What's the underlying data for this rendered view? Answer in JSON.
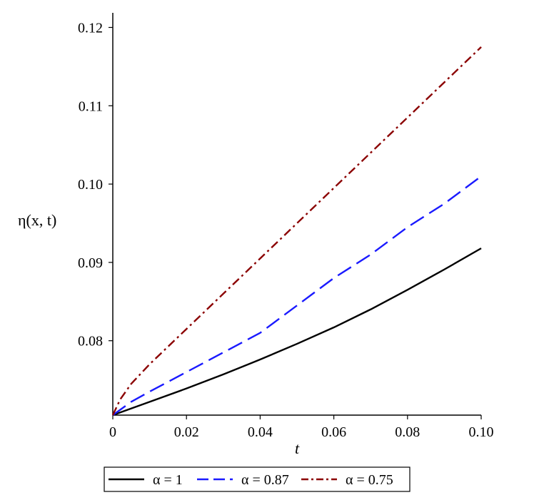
{
  "chart_data": {
    "type": "line",
    "title": "",
    "xlabel": "t",
    "ylabel": "η(x, t)",
    "xlim": [
      0,
      0.1
    ],
    "ylim": [
      0.0705,
      0.1215
    ],
    "x_ticks": [
      0,
      0.02,
      0.04,
      0.06,
      0.08,
      0.1
    ],
    "x_tick_labels": [
      "0",
      "0.02",
      "0.04",
      "0.06",
      "0.08",
      "0.10"
    ],
    "y_ticks": [
      0.08,
      0.09,
      0.1,
      0.11,
      0.12
    ],
    "y_tick_labels": [
      "0.08",
      "0.09",
      "0.10",
      "0.11",
      "0.12"
    ],
    "grid": false,
    "legend_position": "bottom",
    "series": [
      {
        "name": "α = 1",
        "color": "#000000",
        "dash": "solid",
        "x": [
          0,
          0.01,
          0.02,
          0.03,
          0.04,
          0.05,
          0.06,
          0.07,
          0.08,
          0.09,
          0.1
        ],
        "y": [
          0.0705,
          0.0722,
          0.0739,
          0.0757,
          0.0776,
          0.0796,
          0.0817,
          0.084,
          0.0865,
          0.0891,
          0.0918
        ]
      },
      {
        "name": "α = 0.87",
        "color": "#1a1aff",
        "dash": "long-dash",
        "x": [
          0,
          0.005,
          0.01,
          0.02,
          0.03,
          0.04,
          0.05,
          0.06,
          0.07,
          0.08,
          0.09,
          0.1
        ],
        "y": [
          0.0705,
          0.0722,
          0.0735,
          0.076,
          0.0785,
          0.081,
          0.0845,
          0.088,
          0.091,
          0.0945,
          0.0975,
          0.101
        ]
      },
      {
        "name": "α = 0.75",
        "color": "#8b0000",
        "dash": "dash-dot",
        "x": [
          0,
          0.002,
          0.005,
          0.01,
          0.02,
          0.03,
          0.04,
          0.05,
          0.06,
          0.07,
          0.08,
          0.09,
          0.1
        ],
        "y": [
          0.0705,
          0.0725,
          0.0745,
          0.077,
          0.0815,
          0.086,
          0.0905,
          0.095,
          0.0995,
          0.104,
          0.1085,
          0.113,
          0.1175
        ]
      }
    ]
  }
}
